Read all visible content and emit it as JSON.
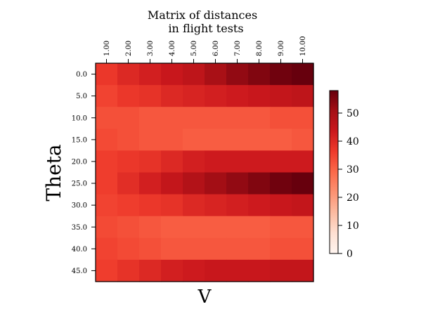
{
  "chart_data": {
    "type": "heatmap",
    "title": "Matrix of distances\nin flight tests",
    "xlabel": "V",
    "ylabel": "Theta",
    "x": [
      "1.00",
      "2.00",
      "3.00",
      "4.00",
      "5.00",
      "6.00",
      "7.00",
      "8.00",
      "9.00",
      "10.00"
    ],
    "y": [
      "0.0",
      "5.0",
      "10.0",
      "15.0",
      "20.0",
      "25.0",
      "30.0",
      "35.0",
      "40.0",
      "45.0"
    ],
    "values": [
      [
        37,
        40,
        42,
        44,
        46,
        50,
        53,
        55,
        57,
        58
      ],
      [
        35,
        37,
        38,
        40,
        41,
        42,
        43,
        44,
        45,
        46
      ],
      [
        33,
        33,
        32,
        32,
        32,
        32,
        32,
        32,
        33,
        33
      ],
      [
        34,
        33,
        32,
        32,
        31,
        31,
        31,
        31,
        31,
        32
      ],
      [
        36,
        37,
        38,
        40,
        42,
        43,
        43,
        43,
        43,
        43
      ],
      [
        36,
        39,
        42,
        45,
        48,
        51,
        53,
        55,
        57,
        58
      ],
      [
        35,
        36,
        37,
        38,
        40,
        41,
        42,
        43,
        44,
        45
      ],
      [
        34,
        33,
        32,
        31,
        31,
        31,
        31,
        31,
        32,
        32
      ],
      [
        35,
        34,
        33,
        32,
        32,
        32,
        32,
        32,
        33,
        33
      ],
      [
        36,
        38,
        40,
        42,
        43,
        44,
        44,
        44,
        45,
        45
      ]
    ],
    "colormap": "Reds",
    "vmin": 0,
    "vmax": 58,
    "colorbar_ticks": [
      0,
      10,
      20,
      30,
      40,
      50
    ],
    "x_ticks_position": "top",
    "grid": false
  }
}
